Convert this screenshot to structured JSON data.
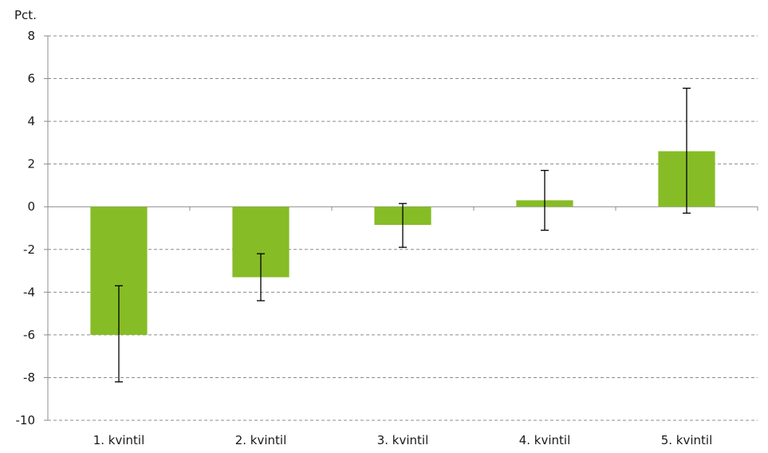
{
  "chart_data": {
    "type": "bar",
    "unit_label": "Pct.",
    "categories": [
      "1. kvintil",
      "2. kvintil",
      "3. kvintil",
      "4. kvintil",
      "5. kvintil"
    ],
    "values": [
      -6.0,
      -3.3,
      -0.85,
      0.3,
      2.6
    ],
    "error_low": [
      -8.2,
      -4.4,
      -1.9,
      -1.1,
      -0.3
    ],
    "error_high": [
      -3.7,
      -2.2,
      0.15,
      1.7,
      5.55
    ],
    "ylim": [
      -10,
      8
    ],
    "yticks": [
      "8",
      "6",
      "4",
      "2",
      "0",
      "-2",
      "-4",
      "-6",
      "-8",
      "-10"
    ],
    "grid": true,
    "legend": "none",
    "colors": {
      "bar": "#86bc25",
      "error": "#000000",
      "grid": "#8c8c8c",
      "axis": "#8c8c8c"
    }
  }
}
